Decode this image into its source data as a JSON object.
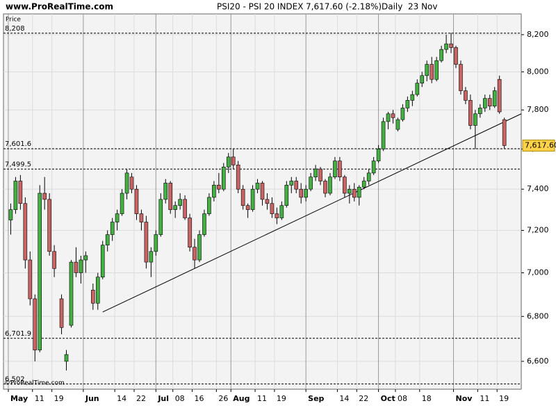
{
  "chart_data": {
    "type": "candlestick",
    "site": "www.ProRealTime.com",
    "title": "PSI20 - PSI 20 INDEX",
    "quote": "7,617.60 (-2.18%)",
    "period": "Daily  23 Nov",
    "ylabel": "Price",
    "copyright": "©ProRealTime.com",
    "log_scale": true,
    "grid": true,
    "up_color": "#44b044",
    "down_color": "#c86464",
    "xlim": [
      -2,
      212
    ],
    "ylim": [
      6479,
      8314
    ],
    "yticks": [
      {
        "value": 6600,
        "label": "6,600"
      },
      {
        "value": 6800,
        "label": "6,800"
      },
      {
        "value": 7000,
        "label": "7,000"
      },
      {
        "value": 7200,
        "label": "7,200"
      },
      {
        "value": 7400,
        "label": "7,400"
      },
      {
        "value": 7600,
        "label": "7,600"
      },
      {
        "value": 7800,
        "label": "7,800"
      },
      {
        "value": 8000,
        "label": "8,000"
      },
      {
        "value": 8200,
        "label": "8,200"
      }
    ],
    "xticks": [
      {
        "value": 0,
        "label": "May"
      },
      {
        "value": 10,
        "label": "11"
      },
      {
        "value": 18,
        "label": "19"
      },
      {
        "value": 31,
        "label": "Jun"
      },
      {
        "value": 44,
        "label": "14"
      },
      {
        "value": 52,
        "label": "22"
      },
      {
        "value": 61,
        "label": "Jul"
      },
      {
        "value": 68,
        "label": "08"
      },
      {
        "value": 76,
        "label": "16"
      },
      {
        "value": 86,
        "label": "26"
      },
      {
        "value": 92,
        "label": "Aug"
      },
      {
        "value": 102,
        "label": "11"
      },
      {
        "value": 110,
        "label": "19"
      },
      {
        "value": 123,
        "label": "Sep"
      },
      {
        "value": 136,
        "label": "14"
      },
      {
        "value": 144,
        "label": "22"
      },
      {
        "value": 153,
        "label": "Oct"
      },
      {
        "value": 160,
        "label": "08"
      },
      {
        "value": 170,
        "label": "18"
      },
      {
        "value": 184,
        "label": "Nov"
      },
      {
        "value": 194,
        "label": "11"
      },
      {
        "value": 202,
        "label": "19"
      }
    ],
    "levels": [
      {
        "value": 8208,
        "label": "8,208"
      },
      {
        "value": 7601.6,
        "label": "7,601.6"
      },
      {
        "value": 7499.5,
        "label": "7,499.5"
      },
      {
        "value": 6701.9,
        "label": "6,701.9"
      },
      {
        "value": 6502,
        "label": "6,502"
      }
    ],
    "last_price": {
      "value": 7617.6,
      "label": "7,617.60"
    },
    "trendline": {
      "x": [
        39,
        212
      ],
      "y": [
        6820,
        7780
      ]
    },
    "x": [
      1,
      3,
      5,
      7,
      9,
      11,
      13,
      15,
      17,
      19,
      22,
      24,
      26,
      28,
      30,
      32,
      35,
      37,
      39,
      41,
      43,
      45,
      47,
      49,
      51,
      53,
      55,
      57,
      59,
      61,
      63,
      65,
      67,
      69,
      71,
      73,
      75,
      77,
      79,
      81,
      83,
      85,
      87,
      89,
      91,
      93,
      95,
      97,
      99,
      101,
      103,
      105,
      107,
      109,
      111,
      113,
      115,
      117,
      119,
      121,
      123,
      125,
      127,
      129,
      131,
      133,
      135,
      137,
      139,
      141,
      143,
      145,
      147,
      149,
      151,
      153,
      155,
      157,
      159,
      161,
      163,
      165,
      167,
      169,
      171,
      173,
      175,
      177,
      179,
      181,
      183,
      185,
      187,
      189,
      191,
      193,
      195,
      197,
      199,
      201,
      203,
      205
    ],
    "open": [
      7250,
      7300,
      7440,
      7330,
      7060,
      6880,
      6650,
      7380,
      7350,
      7100,
      6880,
      6600,
      6760,
      7050,
      7000,
      7060,
      6920,
      6860,
      6980,
      7130,
      7180,
      7240,
      7280,
      7380,
      7460,
      7400,
      7280,
      7240,
      7050,
      7100,
      7180,
      7350,
      7430,
      7300,
      7320,
      7350,
      7260,
      7120,
      7060,
      7180,
      7280,
      7360,
      7420,
      7400,
      7510,
      7560,
      7520,
      7400,
      7320,
      7300,
      7400,
      7430,
      7350,
      7330,
      7280,
      7260,
      7320,
      7420,
      7440,
      7400,
      7360,
      7400,
      7460,
      7500,
      7440,
      7380,
      7460,
      7540,
      7460,
      7380,
      7400,
      7360,
      7410,
      7440,
      7480,
      7540,
      7600,
      7740,
      7780,
      7700,
      7750,
      7810,
      7850,
      7880,
      7940,
      7980,
      8040,
      7960,
      8060,
      8120,
      8150,
      8130,
      8040,
      7900,
      7850,
      7720,
      7780,
      7810,
      7860,
      7820,
      7960,
      7750
    ],
    "high": [
      7330,
      7460,
      7470,
      7360,
      7100,
      6900,
      7420,
      7460,
      7380,
      7130,
      6900,
      6650,
      7060,
      7120,
      7080,
      7100,
      6950,
      7000,
      7150,
      7200,
      7260,
      7300,
      7400,
      7500,
      7480,
      7420,
      7300,
      7270,
      7120,
      7200,
      7380,
      7450,
      7440,
      7340,
      7380,
      7370,
      7280,
      7160,
      7200,
      7300,
      7380,
      7440,
      7480,
      7530,
      7580,
      7600,
      7540,
      7420,
      7330,
      7420,
      7450,
      7440,
      7380,
      7360,
      7310,
      7340,
      7440,
      7460,
      7460,
      7430,
      7420,
      7480,
      7520,
      7510,
      7450,
      7480,
      7560,
      7560,
      7470,
      7420,
      7430,
      7420,
      7460,
      7500,
      7560,
      7620,
      7760,
      7790,
      7800,
      7760,
      7830,
      7870,
      7900,
      7960,
      8000,
      8060,
      8080,
      8080,
      8140,
      8200,
      8210,
      8140,
      8060,
      7920,
      7880,
      7800,
      7830,
      7880,
      7880,
      7920,
      7980,
      7760
    ],
    "low": [
      7180,
      7280,
      7300,
      7020,
      6850,
      6600,
      6640,
      7300,
      7080,
      6980,
      6720,
      6560,
      6750,
      6980,
      6950,
      7000,
      6830,
      6830,
      6970,
      7100,
      7150,
      7200,
      7270,
      7350,
      7380,
      7250,
      7200,
      7020,
      6980,
      7080,
      7170,
      7330,
      7280,
      7260,
      7300,
      7250,
      7100,
      7020,
      7050,
      7170,
      7270,
      7340,
      7380,
      7390,
      7480,
      7500,
      7380,
      7300,
      7260,
      7290,
      7380,
      7320,
      7300,
      7260,
      7230,
      7250,
      7310,
      7380,
      7380,
      7330,
      7340,
      7390,
      7440,
      7420,
      7360,
      7370,
      7450,
      7440,
      7360,
      7330,
      7340,
      7320,
      7400,
      7420,
      7470,
      7530,
      7590,
      7700,
      7730,
      7690,
      7740,
      7790,
      7820,
      7870,
      7920,
      7950,
      7940,
      7950,
      8050,
      8100,
      8100,
      8020,
      7880,
      7830,
      7700,
      7600,
      7760,
      7790,
      7800,
      7810,
      7780,
      7600
    ],
    "close": [
      7300,
      7440,
      7330,
      7060,
      6880,
      6650,
      7380,
      7350,
      7100,
      7020,
      6750,
      6630,
      7050,
      7000,
      7060,
      7080,
      6860,
      6980,
      7130,
      7180,
      7240,
      7280,
      7380,
      7480,
      7400,
      7280,
      7240,
      7050,
      7100,
      7180,
      7350,
      7430,
      7300,
      7320,
      7350,
      7260,
      7120,
      7060,
      7180,
      7280,
      7360,
      7420,
      7400,
      7510,
      7560,
      7520,
      7400,
      7320,
      7300,
      7400,
      7430,
      7350,
      7330,
      7280,
      7260,
      7320,
      7420,
      7440,
      7400,
      7360,
      7400,
      7460,
      7500,
      7440,
      7380,
      7460,
      7540,
      7460,
      7380,
      7400,
      7360,
      7410,
      7440,
      7480,
      7540,
      7600,
      7740,
      7780,
      7760,
      7750,
      7810,
      7850,
      7880,
      7940,
      7980,
      8040,
      7960,
      8060,
      8120,
      8150,
      8130,
      8040,
      7900,
      7850,
      7720,
      7780,
      7810,
      7860,
      7820,
      7900,
      7790,
      7617.6
    ]
  }
}
